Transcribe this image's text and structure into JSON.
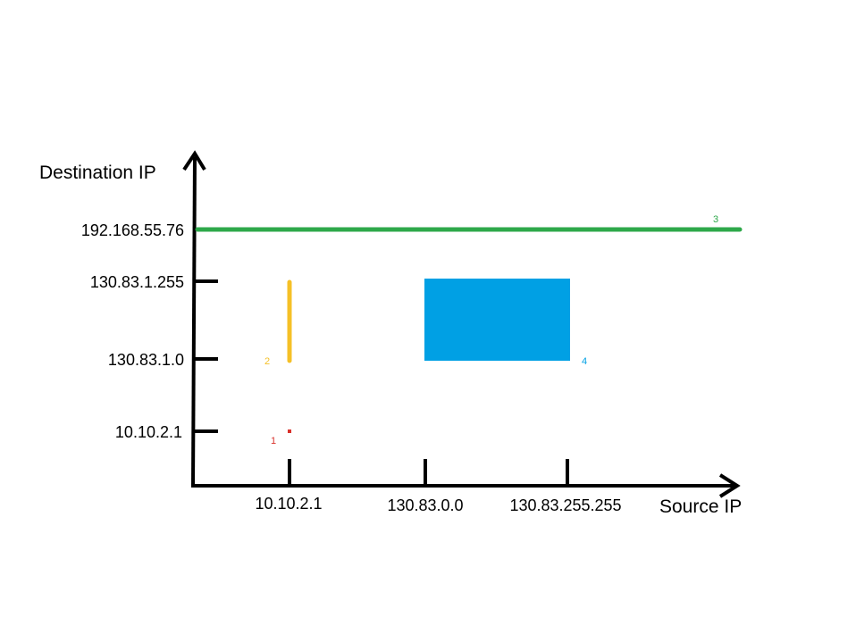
{
  "axes": {
    "y_title": "Destination IP",
    "x_title": "Source IP",
    "y_ticks": [
      "192.168.55.76",
      "130.83.1.255",
      "130.83.1.0",
      "10.10.2.1"
    ],
    "x_ticks": [
      "10.10.2.1",
      "130.83.0.0",
      "130.83.255.255"
    ]
  },
  "regions": [
    {
      "label": "1",
      "shape": "point",
      "color": "#d9312b"
    },
    {
      "label": "2",
      "shape": "vertical-line",
      "color": "#f5c027"
    },
    {
      "label": "3",
      "shape": "horizontal-line",
      "color": "#2ea84a"
    },
    {
      "label": "4",
      "shape": "rectangle",
      "color": "#00a0e4"
    }
  ],
  "colors": {
    "axis": "#000000"
  }
}
